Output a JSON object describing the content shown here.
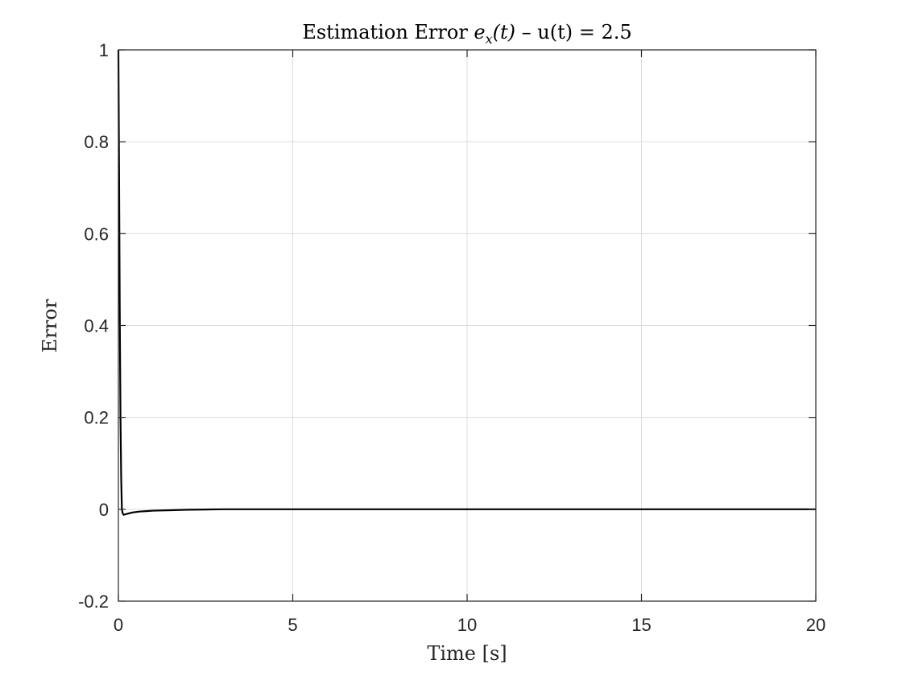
{
  "chart_data": {
    "type": "line",
    "title": "Estimation Error e_x(t) – u(t) = 2.5",
    "title_parts": {
      "prefix": "Estimation Error ",
      "var": "e",
      "sub": "x",
      "arg": "(t)",
      "suffix": " – u(t) = 2.5"
    },
    "xlabel": "Time [s]",
    "ylabel": "Error",
    "xlim": [
      0,
      20
    ],
    "ylim": [
      -0.2,
      1
    ],
    "xticks": [
      0,
      5,
      10,
      15,
      20
    ],
    "xtick_labels": [
      "0",
      "5",
      "10",
      "15",
      "20"
    ],
    "yticks": [
      -0.2,
      0,
      0.2,
      0.4,
      0.6,
      0.8,
      1
    ],
    "ytick_labels": [
      "-0.2",
      "0",
      "0.2",
      "0.4",
      "0.6",
      "0.8",
      "1"
    ],
    "grid": true,
    "series": [
      {
        "color": "#000000",
        "x": [
          0,
          0.02,
          0.04,
          0.06,
          0.08,
          0.1,
          0.12,
          0.15,
          0.2,
          0.3,
          0.4,
          0.6,
          0.8,
          1.0,
          1.5,
          2,
          3,
          5,
          10,
          15,
          20
        ],
        "y": [
          1,
          0.72,
          0.42,
          0.2,
          0.07,
          0.0,
          -0.008,
          -0.012,
          -0.011,
          -0.009,
          -0.007,
          -0.005,
          -0.004,
          -0.003,
          -0.002,
          -0.001,
          0.0,
          0.0,
          0.0,
          0.0,
          0.0
        ]
      }
    ]
  }
}
